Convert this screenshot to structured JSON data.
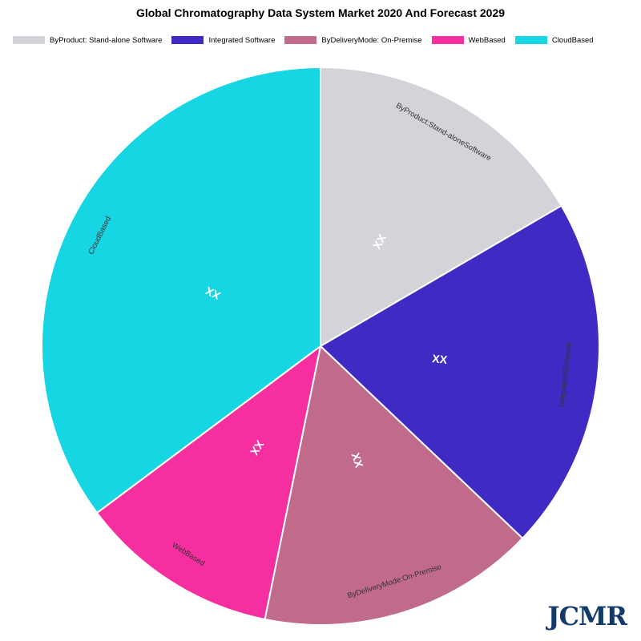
{
  "chart_data": {
    "type": "pie",
    "title": "Global Chromatography Data System Market 2020 And Forecast 2029",
    "legend_position": "top",
    "slices": [
      {
        "label": "ByProduct:Stand-aloneSoftware",
        "legend_label": "ByProduct: Stand-alone Software",
        "value": 16.6,
        "data_label": "XX",
        "color": "#d3d3da"
      },
      {
        "label": "IntegratedSoftware",
        "legend_label": "Integrated Software",
        "value": 20.5,
        "data_label": "XX",
        "color": "#3f2bc3"
      },
      {
        "label": "ByDeliveryMode:On-Premise",
        "legend_label": "ByDeliveryMode: On-Premise",
        "value": 16.1,
        "data_label": "XX",
        "color": "#c06b8b"
      },
      {
        "label": "WebBased",
        "legend_label": "WebBased",
        "value": 11.6,
        "data_label": "XX",
        "color": "#f52fa0"
      },
      {
        "label": "CloudBased",
        "legend_label": "CloudBased",
        "value": 35.2,
        "data_label": "XX",
        "color": "#16d6e3"
      }
    ]
  },
  "logo": {
    "text": "JCMR"
  }
}
